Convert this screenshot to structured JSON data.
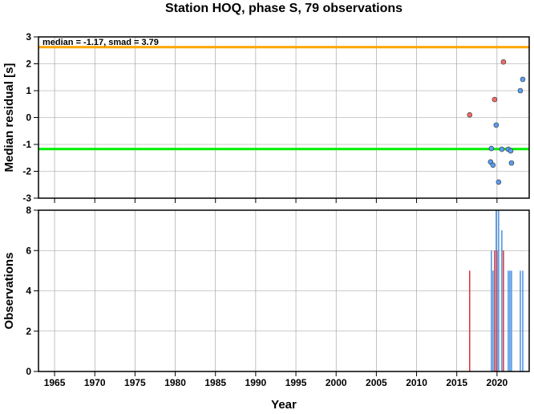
{
  "chart_data": [
    {
      "type": "scatter",
      "title": "Station HOQ, phase S, 79 observations",
      "ylabel": "Median residual [s]",
      "annotation": "median = -1.17, smad = 3.79",
      "xlim": [
        1963,
        2024
      ],
      "xticks": [
        1965,
        1970,
        1975,
        1980,
        1985,
        1990,
        1995,
        2000,
        2005,
        2010,
        2015,
        2020
      ],
      "ylim": [
        -3,
        3
      ],
      "yticks": [
        -3,
        -2,
        -1,
        0,
        1,
        2,
        3
      ],
      "grid": true,
      "hlines": [
        {
          "value": 2.62,
          "color": "#ffa500"
        },
        {
          "value": -1.17,
          "color": "#00ee00"
        }
      ],
      "series": [
        {
          "color": "#f06a6a",
          "x": [
            2016.6,
            2019.7,
            2020.8
          ],
          "values": [
            0.1,
            0.67,
            2.07
          ]
        },
        {
          "color": "#5a9ef0",
          "x": [
            2019.9,
            2019.3,
            2019.2,
            2019.5,
            2020.2,
            2020.6,
            2021.4,
            2021.7,
            2021.8,
            2022.9,
            2023.2
          ],
          "values": [
            -0.28,
            -1.15,
            -1.65,
            -1.77,
            -2.4,
            -1.18,
            -1.18,
            -1.24,
            -1.69,
            1.0,
            1.42
          ]
        }
      ]
    },
    {
      "type": "bar",
      "ylabel": "Observations",
      "xlabel": "Year",
      "xlim": [
        1963,
        2024
      ],
      "xticks": [
        1965,
        1970,
        1975,
        1980,
        1985,
        1990,
        1995,
        2000,
        2005,
        2010,
        2015,
        2020
      ],
      "ylim": [
        0,
        8
      ],
      "yticks": [
        0,
        2,
        4,
        6,
        8
      ],
      "grid": true,
      "series": [
        {
          "color": "#e03030",
          "x": [
            2016.6,
            2019.7,
            2020.0,
            2020.8
          ],
          "values": [
            5,
            6,
            6,
            6
          ]
        },
        {
          "color": "#4a90e0",
          "x": [
            2019.3,
            2019.5,
            2019.9,
            2020.2,
            2020.6,
            2021.4,
            2021.6,
            2021.8,
            2022.9,
            2023.2
          ],
          "values": [
            6,
            5,
            8,
            8,
            7,
            5,
            5,
            5,
            5,
            5
          ]
        }
      ]
    }
  ]
}
